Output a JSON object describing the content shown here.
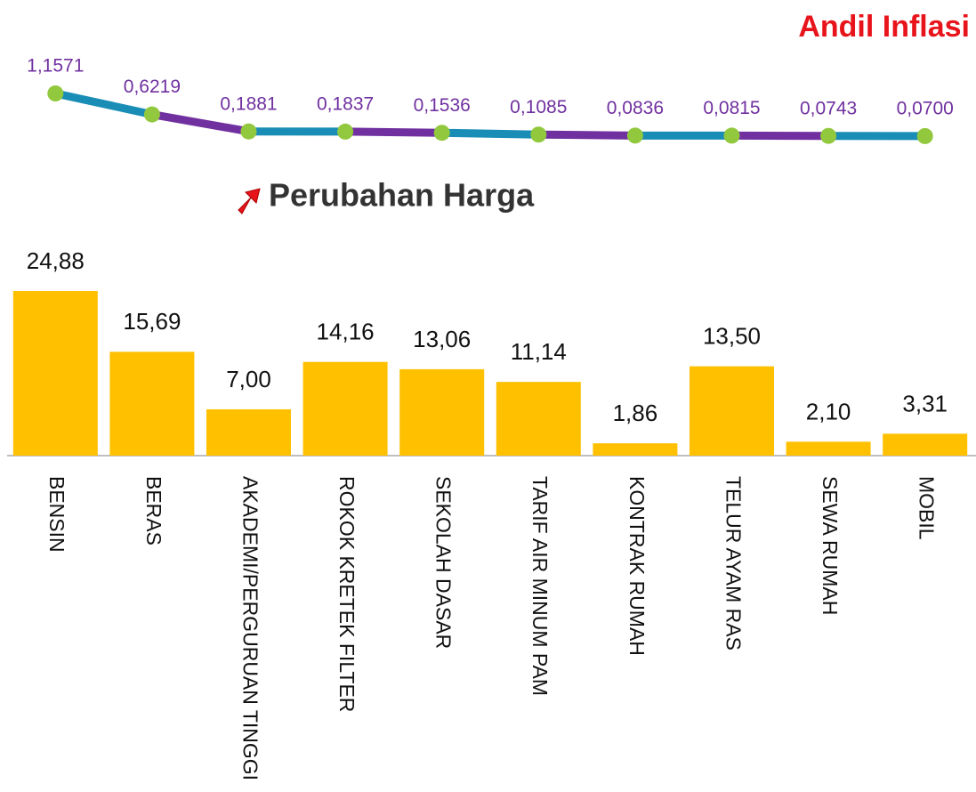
{
  "chart_data": [
    {
      "type": "line",
      "title": "Andil Inflasi",
      "values": [
        1.1571,
        0.6219,
        0.1881,
        0.1837,
        0.1536,
        0.1085,
        0.0836,
        0.0815,
        0.0743,
        0.07
      ],
      "value_labels": [
        "1,1571",
        "0,6219",
        "0,1881",
        "0,1837",
        "0,1536",
        "0,1085",
        "0,0836",
        "0,0815",
        "0,0743",
        "0,0700"
      ],
      "colors": [
        "#1a8db6",
        "#7030a0"
      ],
      "marker_color": "#92c83e",
      "label_color": "#7030a0",
      "title_color": "#e8141b"
    },
    {
      "type": "bar",
      "title": "Perubahan Harga",
      "categories": [
        "BENSIN",
        "BERAS",
        "AKADEMI/PERGURUAN TINGGI",
        "ROKOK KRETEK FILTER",
        "SEKOLAH DASAR",
        "TARIF AIR MINUM PAM",
        "KONTRAK RUMAH",
        "TELUR AYAM RAS",
        "SEWA RUMAH",
        "MOBIL"
      ],
      "values": [
        24.88,
        15.69,
        7.0,
        14.16,
        13.06,
        11.14,
        1.86,
        13.5,
        2.1,
        3.31
      ],
      "value_labels": [
        "24,88",
        "15,69",
        "7,00",
        "14,16",
        "13,06",
        "11,14",
        "1,86",
        "13,50",
        "2,10",
        "3,31"
      ],
      "color": "#ffc000"
    }
  ]
}
